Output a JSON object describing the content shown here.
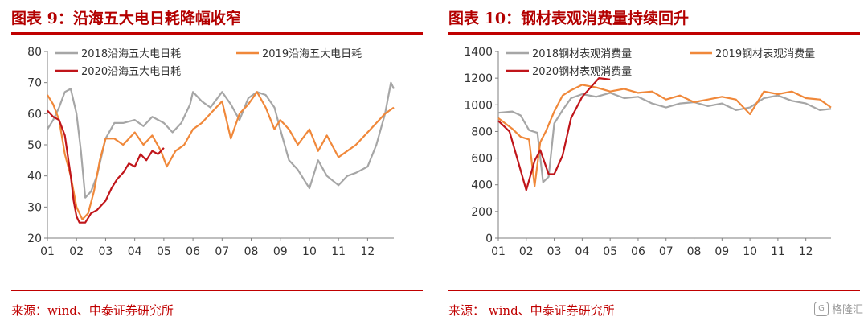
{
  "left_panel": {
    "title": "图表 9：沿海五大电日耗降幅收窄",
    "source": "来源：wind、中泰证券研究所"
  },
  "right_panel": {
    "title": "图表 10：钢材表观消费量持续回升",
    "source": "来源：  wind、中泰证券研究所"
  },
  "watermark": {
    "logo_text": "G",
    "text": "格隆汇"
  },
  "colors": {
    "accent": "#c00000",
    "s2018": "#a6a6a6",
    "s2019": "#f0883a",
    "s2020": "#c0151a"
  },
  "chart_data": [
    {
      "type": "line",
      "title": "",
      "xlabel": "",
      "ylabel": "",
      "xlim": [
        1,
        12.9
      ],
      "ylim": [
        20,
        80
      ],
      "yticks": [
        20,
        30,
        40,
        50,
        60,
        70,
        80
      ],
      "xticks": [
        "01",
        "02",
        "03",
        "04",
        "05",
        "06",
        "07",
        "08",
        "09",
        "10",
        "11",
        "12"
      ],
      "legend_position": "top",
      "grid": false,
      "series": [
        {
          "name": "2018沿海五大电日耗",
          "color": "#a6a6a6",
          "x": [
            1.0,
            1.2,
            1.4,
            1.6,
            1.8,
            2.0,
            2.15,
            2.3,
            2.5,
            2.7,
            3.0,
            3.3,
            3.6,
            4.0,
            4.3,
            4.6,
            5.0,
            5.3,
            5.6,
            5.9,
            6.0,
            6.3,
            6.6,
            7.0,
            7.3,
            7.6,
            7.9,
            8.2,
            8.5,
            8.8,
            9.0,
            9.3,
            9.6,
            10.0,
            10.3,
            10.6,
            11.0,
            11.3,
            11.6,
            12.0,
            12.3,
            12.6,
            12.8,
            12.9
          ],
          "y": [
            55,
            58,
            62,
            67,
            68,
            60,
            48,
            33,
            35,
            40,
            52,
            57,
            57,
            58,
            56,
            59,
            57,
            54,
            57,
            63,
            67,
            64,
            62,
            67,
            63,
            58,
            65,
            67,
            66,
            62,
            55,
            45,
            42,
            36,
            45,
            40,
            37,
            40,
            41,
            43,
            50,
            60,
            70,
            68
          ]
        },
        {
          "name": "2019沿海五大电日耗",
          "color": "#f0883a",
          "x": [
            1.0,
            1.2,
            1.4,
            1.6,
            1.8,
            2.0,
            2.2,
            2.4,
            2.6,
            2.8,
            3.0,
            3.3,
            3.6,
            4.0,
            4.3,
            4.6,
            4.9,
            5.1,
            5.4,
            5.7,
            6.0,
            6.3,
            6.6,
            7.0,
            7.3,
            7.6,
            7.9,
            8.2,
            8.5,
            8.8,
            9.0,
            9.3,
            9.6,
            10.0,
            10.3,
            10.6,
            11.0,
            11.3,
            11.6,
            12.0,
            12.3,
            12.6,
            12.9
          ],
          "y": [
            66,
            63,
            58,
            47,
            40,
            30,
            26,
            28,
            35,
            45,
            52,
            52,
            50,
            54,
            50,
            53,
            48,
            43,
            48,
            50,
            55,
            57,
            60,
            64,
            52,
            60,
            63,
            67,
            62,
            55,
            58,
            55,
            50,
            55,
            48,
            53,
            46,
            48,
            50,
            54,
            57,
            60,
            62
          ]
        },
        {
          "name": "2020沿海五大电日耗",
          "color": "#c0151a",
          "x": [
            1.0,
            1.2,
            1.4,
            1.6,
            1.8,
            1.9,
            2.0,
            2.1,
            2.3,
            2.5,
            2.7,
            3.0,
            3.2,
            3.4,
            3.6,
            3.8,
            4.0,
            4.2,
            4.4,
            4.6,
            4.8,
            5.0
          ],
          "y": [
            61,
            59,
            58,
            53,
            40,
            32,
            27,
            25,
            25,
            28,
            29,
            32,
            36,
            39,
            41,
            44,
            43,
            47,
            45,
            48,
            47,
            49
          ]
        }
      ]
    },
    {
      "type": "line",
      "title": "",
      "xlabel": "",
      "ylabel": "",
      "xlim": [
        1,
        12.9
      ],
      "ylim": [
        0,
        1400
      ],
      "yticks": [
        0,
        200,
        400,
        600,
        800,
        1000,
        1200,
        1400
      ],
      "xticks": [
        "01",
        "02",
        "03",
        "04",
        "05",
        "06",
        "07",
        "08",
        "09",
        "10",
        "11",
        "12"
      ],
      "legend_position": "top",
      "grid": false,
      "series": [
        {
          "name": "2018钢材表观消费量",
          "color": "#a6a6a6",
          "x": [
            1.0,
            1.5,
            1.8,
            2.1,
            2.4,
            2.6,
            2.8,
            3.0,
            3.3,
            3.6,
            4.0,
            4.5,
            5.0,
            5.5,
            6.0,
            6.5,
            7.0,
            7.5,
            8.0,
            8.5,
            9.0,
            9.5,
            10.0,
            10.5,
            11.0,
            11.5,
            12.0,
            12.5,
            12.9
          ],
          "y": [
            940,
            950,
            920,
            810,
            790,
            420,
            460,
            860,
            960,
            1050,
            1080,
            1060,
            1090,
            1050,
            1060,
            1010,
            980,
            1010,
            1020,
            990,
            1010,
            960,
            980,
            1050,
            1070,
            1030,
            1010,
            960,
            970
          ]
        },
        {
          "name": "2019钢材表观消费量",
          "color": "#f0883a",
          "x": [
            1.0,
            1.5,
            1.8,
            2.1,
            2.3,
            2.5,
            2.7,
            3.0,
            3.3,
            3.6,
            4.0,
            4.5,
            5.0,
            5.5,
            6.0,
            6.5,
            7.0,
            7.5,
            8.0,
            8.5,
            9.0,
            9.5,
            10.0,
            10.5,
            11.0,
            11.5,
            12.0,
            12.5,
            12.9
          ],
          "y": [
            900,
            820,
            760,
            740,
            390,
            720,
            800,
            950,
            1070,
            1110,
            1150,
            1130,
            1100,
            1120,
            1090,
            1100,
            1040,
            1070,
            1020,
            1040,
            1060,
            1040,
            930,
            1100,
            1080,
            1100,
            1050,
            1040,
            980
          ]
        },
        {
          "name": "2020钢材表观消费量",
          "color": "#c0151a",
          "x": [
            1.0,
            1.4,
            1.7,
            2.0,
            2.3,
            2.5,
            2.8,
            3.0,
            3.3,
            3.6,
            4.0,
            4.3,
            4.6,
            5.0
          ],
          "y": [
            880,
            800,
            580,
            360,
            580,
            660,
            480,
            480,
            620,
            900,
            1060,
            1130,
            1200,
            1190
          ]
        }
      ]
    }
  ]
}
